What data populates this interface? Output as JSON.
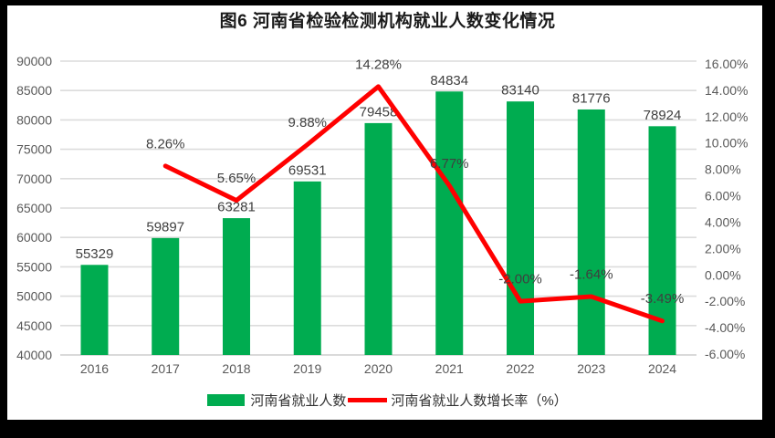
{
  "title": "图6  河南省检验检测机构就业人数变化情况",
  "chart_data": {
    "type": "bar+line combo",
    "title": "图6  河南省检验检测机构就业人数变化情况",
    "categories": [
      "2016",
      "2017",
      "2018",
      "2019",
      "2020",
      "2021",
      "2022",
      "2023",
      "2024"
    ],
    "series": [
      {
        "name": "河南省就业人数",
        "type": "bar",
        "axis": "left",
        "color": "#00AC50",
        "values": [
          55329,
          59897,
          63281,
          69531,
          79458,
          84834,
          83140,
          81776,
          78924
        ]
      },
      {
        "name": "河南省就业人数增长率（%）",
        "type": "line",
        "axis": "right",
        "color": "#FF0000",
        "values": [
          null,
          8.26,
          5.65,
          9.88,
          14.28,
          6.77,
          -2.0,
          -1.64,
          -3.49
        ]
      }
    ],
    "left_axis": {
      "min": 40000,
      "max": 90000,
      "step": 5000,
      "ticks": [
        "90000",
        "85000",
        "80000",
        "75000",
        "70000",
        "65000",
        "60000",
        "55000",
        "50000",
        "45000",
        "40000"
      ]
    },
    "right_axis": {
      "min": -6,
      "max": 16,
      "step": 2,
      "ticks": [
        "16.00%",
        "14.00%",
        "12.00%",
        "10.00%",
        "8.00%",
        "6.00%",
        "4.00%",
        "2.00%",
        "0.00%",
        "-2.00%",
        "-4.00%",
        "-6.00%"
      ]
    },
    "grid": true,
    "legend_position": "bottom",
    "data_labels": true
  },
  "legend": {
    "items": [
      {
        "label": "河南省就业人数",
        "swatch": "bar",
        "color": "#00AC50"
      },
      {
        "label": "河南省就业人数增长率（%）",
        "swatch": "line",
        "color": "#FF0000"
      }
    ]
  },
  "colors": {
    "frame_border": "#000000",
    "background": "#FFFFFF",
    "gridline": "#DCDCDC",
    "axis_line": "#D4D4D4",
    "tick_label": "#595959",
    "data_label": "#3F3F3F",
    "bar": "#00AC50",
    "line": "#FF0000"
  }
}
